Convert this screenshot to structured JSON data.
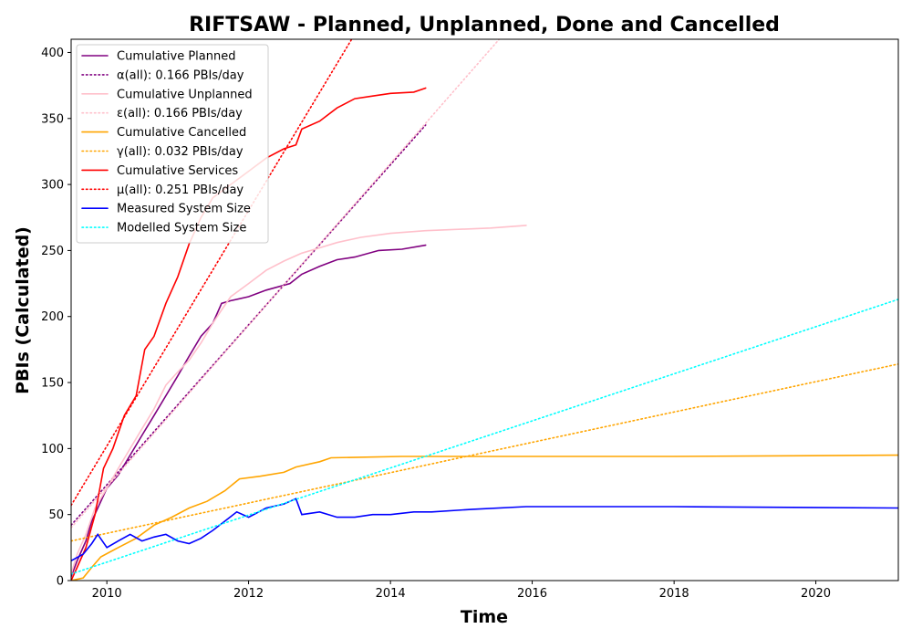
{
  "chart_data": {
    "type": "line",
    "title": "RIFTSAW - Planned, Unplanned, Done  and Cancelled",
    "xlabel": "Time",
    "ylabel": "PBIs (Calculated)",
    "xlim": [
      "2009-07-01",
      "2021-03-01"
    ],
    "ylim": [
      0,
      410
    ],
    "xticks": [
      {
        "date": "2010-01-01",
        "label": "2010"
      },
      {
        "date": "2012-01-01",
        "label": "2012"
      },
      {
        "date": "2014-01-01",
        "label": "2014"
      },
      {
        "date": "2016-01-01",
        "label": "2016"
      },
      {
        "date": "2018-01-01",
        "label": "2018"
      },
      {
        "date": "2020-01-01",
        "label": "2020"
      }
    ],
    "yticks": [
      0,
      50,
      100,
      150,
      200,
      250,
      300,
      350,
      400
    ],
    "grid": false,
    "legend_position": "upper-left",
    "series": [
      {
        "name": "Cumulative Planned",
        "color": "#800080",
        "style": "solid",
        "points": [
          [
            "2009-07-01",
            3
          ],
          [
            "2009-08-01",
            15
          ],
          [
            "2009-09-15",
            30
          ],
          [
            "2009-10-15",
            45
          ],
          [
            "2009-12-01",
            60
          ],
          [
            "2010-01-01",
            70
          ],
          [
            "2010-03-01",
            80
          ],
          [
            "2010-05-01",
            95
          ],
          [
            "2010-07-01",
            110
          ],
          [
            "2010-09-01",
            125
          ],
          [
            "2010-11-01",
            140
          ],
          [
            "2011-01-01",
            155
          ],
          [
            "2011-03-01",
            170
          ],
          [
            "2011-05-01",
            185
          ],
          [
            "2011-07-01",
            195
          ],
          [
            "2011-08-15",
            210
          ],
          [
            "2011-10-01",
            212
          ],
          [
            "2012-01-01",
            215
          ],
          [
            "2012-04-01",
            220
          ],
          [
            "2012-08-01",
            225
          ],
          [
            "2012-10-01",
            232
          ],
          [
            "2013-01-01",
            238
          ],
          [
            "2013-04-01",
            243
          ],
          [
            "2013-07-01",
            245
          ],
          [
            "2013-11-01",
            250
          ],
          [
            "2014-03-01",
            251
          ],
          [
            "2014-07-01",
            254
          ]
        ]
      },
      {
        "name": "α(all): 0.166 PBIs/day",
        "color": "#800080",
        "style": "dotted",
        "points": [
          [
            "2009-07-01",
            42
          ],
          [
            "2014-07-01",
            345
          ]
        ]
      },
      {
        "name": "Cumulative Unplanned",
        "color": "#ffc0cb",
        "style": "solid",
        "points": [
          [
            "2009-07-01",
            5
          ],
          [
            "2009-08-01",
            20
          ],
          [
            "2009-09-15",
            35
          ],
          [
            "2009-11-01",
            55
          ],
          [
            "2010-01-01",
            70
          ],
          [
            "2010-03-01",
            85
          ],
          [
            "2010-05-01",
            100
          ],
          [
            "2010-07-01",
            115
          ],
          [
            "2010-09-01",
            130
          ],
          [
            "2010-11-01",
            148
          ],
          [
            "2011-01-01",
            158
          ],
          [
            "2011-03-01",
            167
          ],
          [
            "2011-05-01",
            180
          ],
          [
            "2011-07-01",
            195
          ],
          [
            "2011-08-15",
            205
          ],
          [
            "2011-10-01",
            215
          ],
          [
            "2012-01-01",
            225
          ],
          [
            "2012-04-01",
            235
          ],
          [
            "2012-07-01",
            242
          ],
          [
            "2012-10-01",
            248
          ],
          [
            "2013-01-01",
            252
          ],
          [
            "2013-04-01",
            256
          ],
          [
            "2013-08-01",
            260
          ],
          [
            "2014-01-01",
            263
          ],
          [
            "2014-07-01",
            265
          ],
          [
            "2015-06-01",
            267
          ],
          [
            "2015-12-01",
            269
          ]
        ]
      },
      {
        "name": "ε(all): 0.166 PBIs/day",
        "color": "#ffc0cb",
        "style": "dotted",
        "points": [
          [
            "2009-07-01",
            40
          ],
          [
            "2015-07-15",
            410
          ]
        ]
      },
      {
        "name": "Cumulative Cancelled",
        "color": "#ffa500",
        "style": "solid",
        "points": [
          [
            "2009-07-01",
            0
          ],
          [
            "2009-09-01",
            2
          ],
          [
            "2009-10-15",
            10
          ],
          [
            "2009-12-01",
            18
          ],
          [
            "2010-03-01",
            25
          ],
          [
            "2010-06-01",
            32
          ],
          [
            "2010-09-01",
            42
          ],
          [
            "2010-12-01",
            48
          ],
          [
            "2011-03-01",
            55
          ],
          [
            "2011-06-01",
            60
          ],
          [
            "2011-09-01",
            68
          ],
          [
            "2011-11-15",
            77
          ],
          [
            "2012-03-01",
            79
          ],
          [
            "2012-07-01",
            82
          ],
          [
            "2012-09-01",
            86
          ],
          [
            "2013-01-01",
            90
          ],
          [
            "2013-03-01",
            93
          ],
          [
            "2014-03-01",
            94
          ],
          [
            "2015-01-01",
            94
          ],
          [
            "2016-01-01",
            94
          ],
          [
            "2018-01-01",
            94
          ],
          [
            "2021-03-01",
            95
          ]
        ]
      },
      {
        "name": "γ(all): 0.032 PBIs/day",
        "color": "#ffa500",
        "style": "dotted",
        "points": [
          [
            "2009-07-01",
            30
          ],
          [
            "2021-03-01",
            164
          ]
        ]
      },
      {
        "name": "Cumulative Services",
        "color": "#ff0000",
        "style": "solid",
        "points": [
          [
            "2009-07-01",
            0
          ],
          [
            "2009-08-01",
            10
          ],
          [
            "2009-09-15",
            25
          ],
          [
            "2009-11-01",
            50
          ],
          [
            "2009-12-15",
            85
          ],
          [
            "2010-02-01",
            100
          ],
          [
            "2010-04-01",
            125
          ],
          [
            "2010-06-01",
            140
          ],
          [
            "2010-07-15",
            175
          ],
          [
            "2010-09-01",
            185
          ],
          [
            "2010-11-01",
            210
          ],
          [
            "2011-01-01",
            230
          ],
          [
            "2011-03-01",
            255
          ],
          [
            "2011-05-01",
            275
          ],
          [
            "2011-07-01",
            290
          ],
          [
            "2011-10-01",
            300
          ],
          [
            "2012-01-01",
            310
          ],
          [
            "2012-04-01",
            320
          ],
          [
            "2012-07-01",
            327
          ],
          [
            "2012-09-01",
            330
          ],
          [
            "2012-10-01",
            342
          ],
          [
            "2013-01-01",
            348
          ],
          [
            "2013-04-01",
            358
          ],
          [
            "2013-07-01",
            365
          ],
          [
            "2013-10-01",
            367
          ],
          [
            "2014-01-01",
            369
          ],
          [
            "2014-05-01",
            370
          ],
          [
            "2014-07-01",
            373
          ]
        ]
      },
      {
        "name": "μ(all): 0.251 PBIs/day",
        "color": "#ff0000",
        "style": "dotted",
        "points": [
          [
            "2009-07-01",
            57
          ],
          [
            "2013-06-15",
            410
          ]
        ]
      },
      {
        "name": "Measured System Size",
        "color": "#0000ff",
        "style": "solid",
        "points": [
          [
            "2009-07-01",
            15
          ],
          [
            "2009-09-01",
            20
          ],
          [
            "2009-10-15",
            28
          ],
          [
            "2009-11-15",
            35
          ],
          [
            "2010-01-01",
            25
          ],
          [
            "2010-03-01",
            30
          ],
          [
            "2010-05-01",
            35
          ],
          [
            "2010-07-01",
            30
          ],
          [
            "2010-09-01",
            33
          ],
          [
            "2010-11-01",
            35
          ],
          [
            "2011-01-01",
            30
          ],
          [
            "2011-03-01",
            28
          ],
          [
            "2011-05-01",
            32
          ],
          [
            "2011-07-01",
            38
          ],
          [
            "2011-09-01",
            45
          ],
          [
            "2011-11-01",
            52
          ],
          [
            "2012-01-01",
            48
          ],
          [
            "2012-04-01",
            55
          ],
          [
            "2012-07-01",
            58
          ],
          [
            "2012-09-01",
            62
          ],
          [
            "2012-10-01",
            50
          ],
          [
            "2013-01-01",
            52
          ],
          [
            "2013-04-01",
            48
          ],
          [
            "2013-07-01",
            48
          ],
          [
            "2013-10-01",
            50
          ],
          [
            "2014-01-01",
            50
          ],
          [
            "2014-05-01",
            52
          ],
          [
            "2014-08-01",
            52
          ],
          [
            "2015-03-01",
            54
          ],
          [
            "2015-12-01",
            56
          ],
          [
            "2018-01-01",
            56
          ],
          [
            "2021-03-01",
            55
          ]
        ]
      },
      {
        "name": "Modelled System Size",
        "color": "#00ffff",
        "style": "dotted",
        "points": [
          [
            "2009-07-01",
            5
          ],
          [
            "2021-03-01",
            213
          ]
        ]
      }
    ]
  }
}
